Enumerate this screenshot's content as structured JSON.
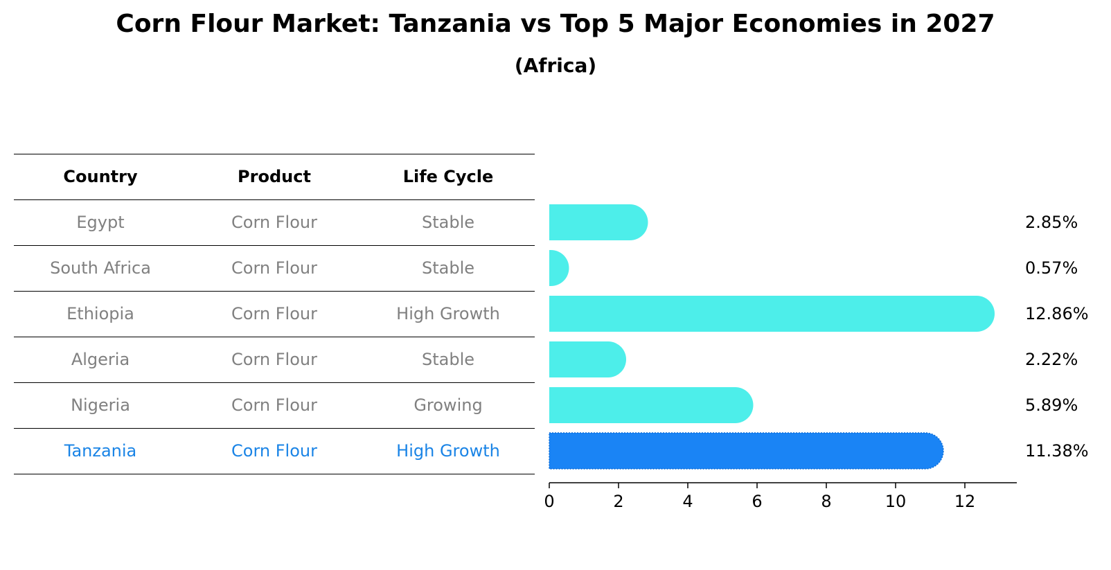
{
  "title": "Corn Flour Market: Tanzania vs Top 5 Major Economies in 2027",
  "subtitle": "(Africa)",
  "table": {
    "headers": [
      "Country",
      "Product",
      "Life Cycle"
    ],
    "rows": [
      {
        "country": "Egypt",
        "product": "Corn Flour",
        "life_cycle": "Stable",
        "highlight": false
      },
      {
        "country": "South Africa",
        "product": "Corn Flour",
        "life_cycle": "Stable",
        "highlight": false
      },
      {
        "country": "Ethiopia",
        "product": "Corn Flour",
        "life_cycle": "High Growth",
        "highlight": false
      },
      {
        "country": "Algeria",
        "product": "Corn Flour",
        "life_cycle": "Stable",
        "highlight": false
      },
      {
        "country": "Nigeria",
        "product": "Corn Flour",
        "life_cycle": "Growing",
        "highlight": false
      },
      {
        "country": "Tanzania",
        "product": "Corn Flour",
        "life_cycle": "High Growth",
        "highlight": true
      }
    ]
  },
  "colors": {
    "bar": "#4deeea",
    "highlight_bar": "#1a84f5",
    "highlight_text": "#1a84e6",
    "row_text": "#808080"
  },
  "chart_data": {
    "type": "bar",
    "orientation": "horizontal",
    "categories": [
      "Egypt",
      "South Africa",
      "Ethiopia",
      "Algeria",
      "Nigeria",
      "Tanzania"
    ],
    "values": [
      2.85,
      0.57,
      12.86,
      2.22,
      5.89,
      11.38
    ],
    "value_labels": [
      "2.85%",
      "0.57%",
      "12.86%",
      "2.22%",
      "5.89%",
      "11.38%"
    ],
    "highlight": "Tanzania",
    "xlim": [
      0,
      13.5
    ],
    "xticks": [
      0,
      2,
      4,
      6,
      8,
      10,
      12
    ],
    "grid": false
  }
}
